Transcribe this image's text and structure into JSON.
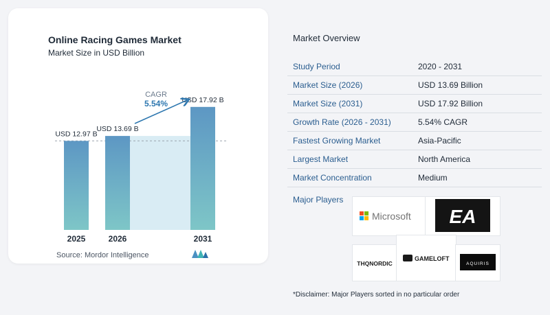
{
  "chart": {
    "title": "Online Racing Games Market",
    "subtitle": "Market Size in USD Billion",
    "cagr_label": "CAGR",
    "cagr_value": "5.54%",
    "source": "Source:  Mordor Intelligence"
  },
  "chart_data": {
    "type": "bar",
    "categories": [
      "2025",
      "2026",
      "2031"
    ],
    "values": [
      12.97,
      13.69,
      17.92
    ],
    "data_labels": [
      "USD 12.97 B",
      "USD 13.69 B",
      "USD 17.92 B"
    ],
    "title": "Online Racing Games Market",
    "subtitle": "Market Size in USD Billion",
    "xlabel": "",
    "ylabel": "",
    "ylim": [
      0,
      19
    ],
    "annotation": "CAGR 5.54%",
    "bar_color": "#5d97c4",
    "bar_color_bottom": "#79c3c6",
    "shade_color": "#d9ecf4",
    "arrow_color": "#2f78b0"
  },
  "overview": {
    "title": "Market Overview",
    "rows": [
      {
        "label": "Study Period",
        "value": "2020 - 2031"
      },
      {
        "label": "Market Size (2026)",
        "value": "USD 13.69 Billion"
      },
      {
        "label": "Market Size (2031)",
        "value": "USD 17.92 Billion"
      },
      {
        "label": "Growth Rate (2026 - 2031)",
        "value": "5.54% CAGR"
      },
      {
        "label": "Fastest Growing Market",
        "value": "Asia-Pacific"
      },
      {
        "label": "Largest Market",
        "value": "North America"
      },
      {
        "label": "Market Concentration",
        "value": "Medium"
      }
    ],
    "major_players_label": "Major Players",
    "players": {
      "microsoft": "Microsoft",
      "ea": "EA",
      "thqnordic": "THQNORDIC",
      "gameloft": "GAMELOFT",
      "aquiris": "AQUIRIS"
    },
    "disclaimer": "*Disclaimer: Major Players sorted in no particular order"
  }
}
